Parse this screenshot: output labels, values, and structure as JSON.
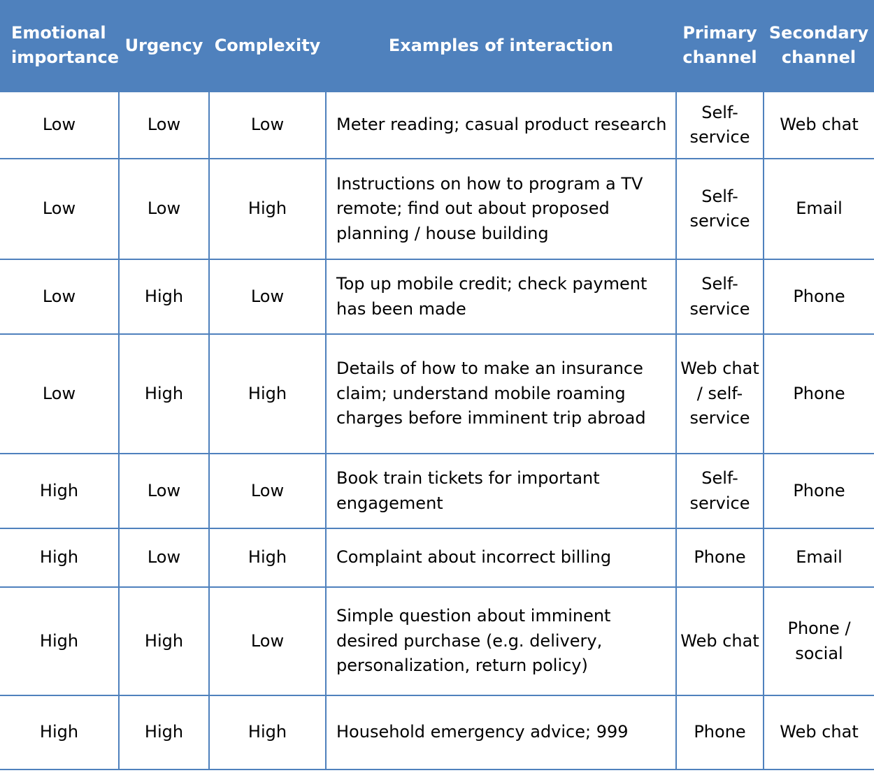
{
  "headers": {
    "emotional_importance": "Emotional importance",
    "urgency": "Urgency",
    "complexity": "Complexity",
    "examples": "Examples of interaction",
    "primary_channel": "Primary channel",
    "secondary_channel": "Secondary channel"
  },
  "rows": [
    {
      "emotional": "Low",
      "urgency": "Low",
      "complexity": "Low",
      "example": "Meter reading; casual product research",
      "primary": "Self-service",
      "secondary": "Web chat"
    },
    {
      "emotional": "Low",
      "urgency": "Low",
      "complexity": "High",
      "example": "Instructions on how to program a TV remote; find out about proposed planning / house building",
      "primary": "Self-service",
      "secondary": "Email"
    },
    {
      "emotional": "Low",
      "urgency": "High",
      "complexity": "Low",
      "example": "Top up mobile credit; check payment has been made",
      "primary": "Self-service",
      "secondary": "Phone"
    },
    {
      "emotional": "Low",
      "urgency": "High",
      "complexity": "High",
      "example": "Details of how to make an insurance claim; understand mobile roaming charges before imminent trip abroad",
      "primary": "Web chat / self-service",
      "secondary": "Phone"
    },
    {
      "emotional": "High",
      "urgency": "Low",
      "complexity": "Low",
      "example": "Book train tickets for important engagement",
      "primary": "Self-service",
      "secondary": "Phone"
    },
    {
      "emotional": "High",
      "urgency": "Low",
      "complexity": "High",
      "example": "Complaint about incorrect billing",
      "primary": "Phone",
      "secondary": "Email"
    },
    {
      "emotional": "High",
      "urgency": "High",
      "complexity": "Low",
      "example": "Simple question about imminent desired purchase (e.g. delivery, personalization, return policy)",
      "primary": "Web chat",
      "secondary": "Phone / social"
    },
    {
      "emotional": "High",
      "urgency": "High",
      "complexity": "High",
      "example": "Household emergency advice; 999",
      "primary": "Phone",
      "secondary": "Web chat"
    }
  ]
}
